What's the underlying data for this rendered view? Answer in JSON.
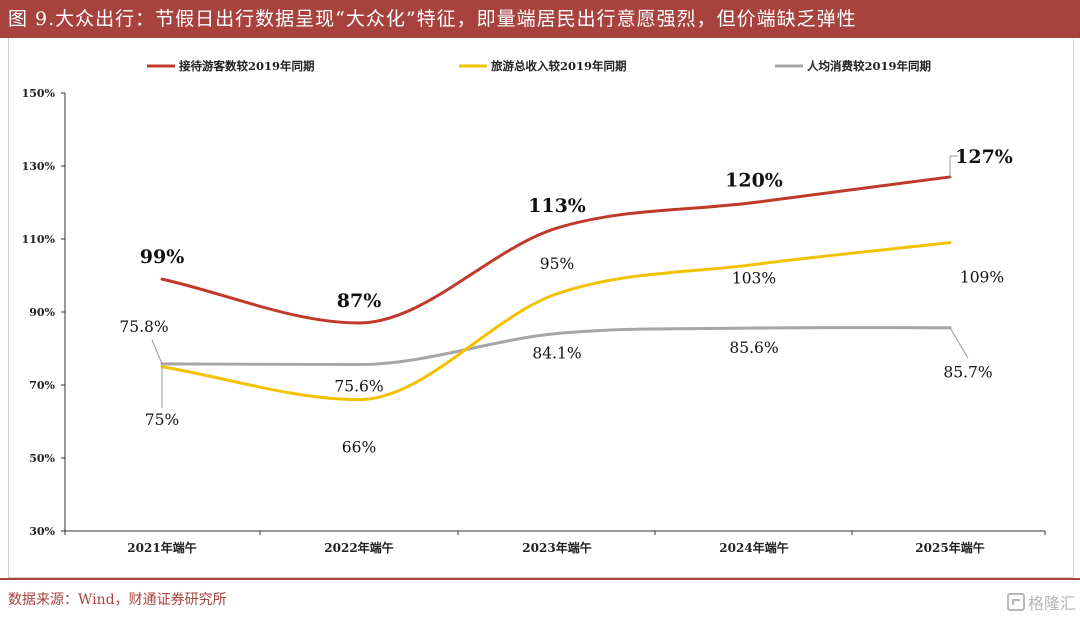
{
  "title": "图 9.大众出行：节假日出行数据呈现“大众化”特征，即量端居民出行意愿强烈，但价端缺乏弹性",
  "source": "数据来源：Wind，财通证券研究所",
  "watermark": "格隆汇",
  "colors": {
    "title_bg": "#a8423e",
    "series": [
      "#c0392b",
      "#f2c200",
      "#a6a6a6"
    ]
  },
  "chart_data": {
    "type": "line",
    "title": "",
    "xlabel": "",
    "ylabel": "",
    "categories": [
      "2021年端午",
      "2022年端午",
      "2023年端午",
      "2024年端午",
      "2025年端午"
    ],
    "ylim": [
      30,
      150
    ],
    "yticks": [
      30,
      50,
      70,
      90,
      110,
      130,
      150
    ],
    "ytick_labels": [
      "30%",
      "50%",
      "70%",
      "90%",
      "110%",
      "130%",
      "150%"
    ],
    "legend_position": "top",
    "series": [
      {
        "name": "接待游客数较2019年同期",
        "values": [
          99,
          87,
          113,
          120,
          127
        ],
        "labels": [
          "99%",
          "87%",
          "113%",
          "120%",
          "127%"
        ]
      },
      {
        "name": "旅游总收入较2019年同期",
        "values": [
          75,
          66,
          95,
          103,
          109
        ],
        "labels": [
          "75%",
          "66%",
          "95%",
          "103%",
          "109%"
        ]
      },
      {
        "name": "人均消费较2019年同期",
        "values": [
          75.8,
          75.6,
          84.1,
          85.6,
          85.7
        ],
        "labels": [
          "75.8%",
          "75.6%",
          "84.1%",
          "85.6%",
          "85.7%"
        ]
      }
    ]
  }
}
